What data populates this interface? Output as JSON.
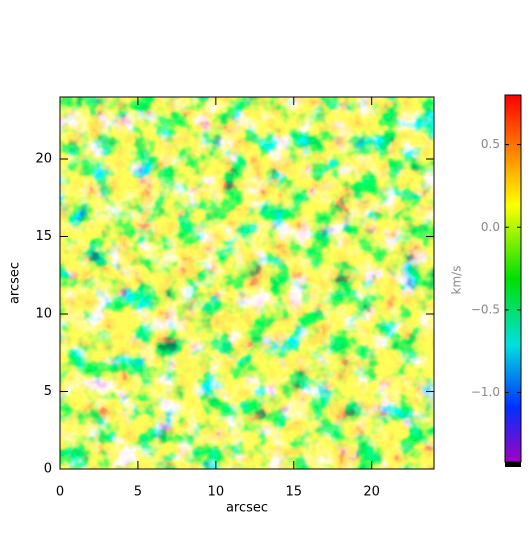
{
  "chart_data": {
    "type": "image",
    "xlabel": "arcsec",
    "ylabel": "arcsec",
    "xlim": [
      0,
      24
    ],
    "ylim": [
      0,
      24
    ],
    "xticks": [
      0,
      5,
      10,
      15,
      20
    ],
    "yticks": [
      0,
      5,
      10,
      15,
      20
    ],
    "colorbar": {
      "label": "km/s",
      "zlim": [
        -1.42,
        0.8
      ],
      "ticks": [
        0.5,
        {
          "value": 0,
          "label": "0.0"
        },
        {
          "value": -0.5,
          "label": "−0.5"
        },
        {
          "value": -1,
          "label": "−1.0"
        }
      ]
    }
  }
}
